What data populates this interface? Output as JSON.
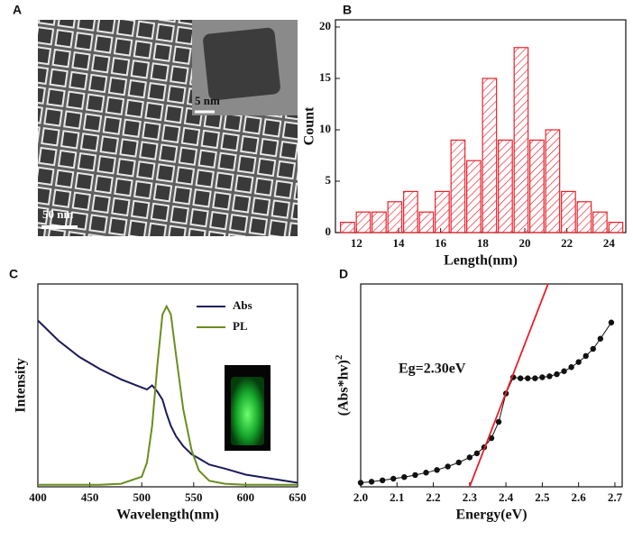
{
  "chart_data": [
    {
      "type": "image",
      "label": "A",
      "annotations": [
        "5 nm",
        "50 nm"
      ]
    },
    {
      "type": "histogram",
      "label": "B",
      "x_label": "Length(nm)",
      "y_label": "Count",
      "bins": [
        11.2,
        11.95,
        12.7,
        13.45,
        14.2,
        14.95,
        15.7,
        16.45,
        17.2,
        17.95,
        18.7,
        19.45,
        20.2,
        20.95,
        21.7,
        22.45,
        23.2,
        23.95,
        24.7
      ],
      "values": [
        1,
        2,
        2,
        3,
        4,
        2,
        4,
        9,
        7,
        15,
        9,
        18,
        9,
        10,
        4,
        3,
        2,
        1
      ],
      "color": "#e8202a",
      "xlim": [
        11,
        24.8
      ],
      "ylim": [
        0,
        20.7
      ],
      "xticks": [
        12,
        14,
        16,
        18,
        20,
        22,
        24
      ],
      "yticks": [
        0,
        5,
        10,
        15,
        20
      ]
    },
    {
      "type": "line",
      "label": "C",
      "x_label": "Wavelength(nm)",
      "y_label": "Intensity",
      "x": [
        400,
        420,
        440,
        460,
        480,
        500,
        505,
        510,
        515,
        520,
        524,
        528,
        533,
        540,
        548,
        555,
        565,
        580,
        600,
        625,
        650
      ],
      "series": [
        {
          "name": "Abs",
          "color": "#1b1b5c",
          "values": [
            82,
            72,
            64,
            58,
            53,
            49,
            48,
            50,
            47,
            43,
            36,
            30,
            25,
            20,
            16,
            14,
            11,
            9,
            6,
            4,
            2
          ]
        },
        {
          "name": "PL",
          "color": "#6b8e1f",
          "values": [
            1,
            1,
            1,
            1,
            1.5,
            5,
            12,
            30,
            60,
            85,
            89,
            85,
            65,
            38,
            18,
            8,
            3,
            1.5,
            1,
            1,
            1
          ]
        }
      ],
      "xlim": [
        400,
        650
      ],
      "ylim": [
        0,
        100
      ],
      "xticks": [
        400,
        450,
        500,
        550,
        600,
        650
      ],
      "legend": "upper right"
    },
    {
      "type": "scatter",
      "label": "D",
      "x_label": "Energy(eV)",
      "y_label": "(Abs*hv)",
      "y_label_exponent": "2",
      "annotation": "Eg=2.30eV",
      "color": "#111111",
      "x": [
        2.0,
        2.03,
        2.06,
        2.09,
        2.12,
        2.15,
        2.18,
        2.21,
        2.24,
        2.27,
        2.3,
        2.32,
        2.34,
        2.36,
        2.38,
        2.4,
        2.42,
        2.44,
        2.46,
        2.48,
        2.5,
        2.52,
        2.54,
        2.56,
        2.58,
        2.6,
        2.62,
        2.64,
        2.66,
        2.69
      ],
      "values": [
        2,
        2.5,
        3.2,
        4,
        4.8,
        5.8,
        7,
        8.3,
        10,
        12,
        14.5,
        16.5,
        19.5,
        24,
        32,
        46,
        54,
        53.5,
        53.5,
        53.5,
        54,
        54.5,
        55.5,
        57,
        59,
        61.5,
        64.5,
        68,
        73,
        81
      ],
      "fit_line": {
        "color": "#e8202a",
        "x": [
          2.3,
          2.516
        ],
        "values": [
          0,
          100
        ]
      },
      "xlim": [
        2.0,
        2.72
      ],
      "ylim": [
        0,
        100
      ],
      "xticks": [
        {
          "value": 2,
          "label": "2.0"
        },
        2.1,
        2.2,
        2.3,
        2.4,
        2.5,
        2.6,
        2.7
      ]
    }
  ]
}
